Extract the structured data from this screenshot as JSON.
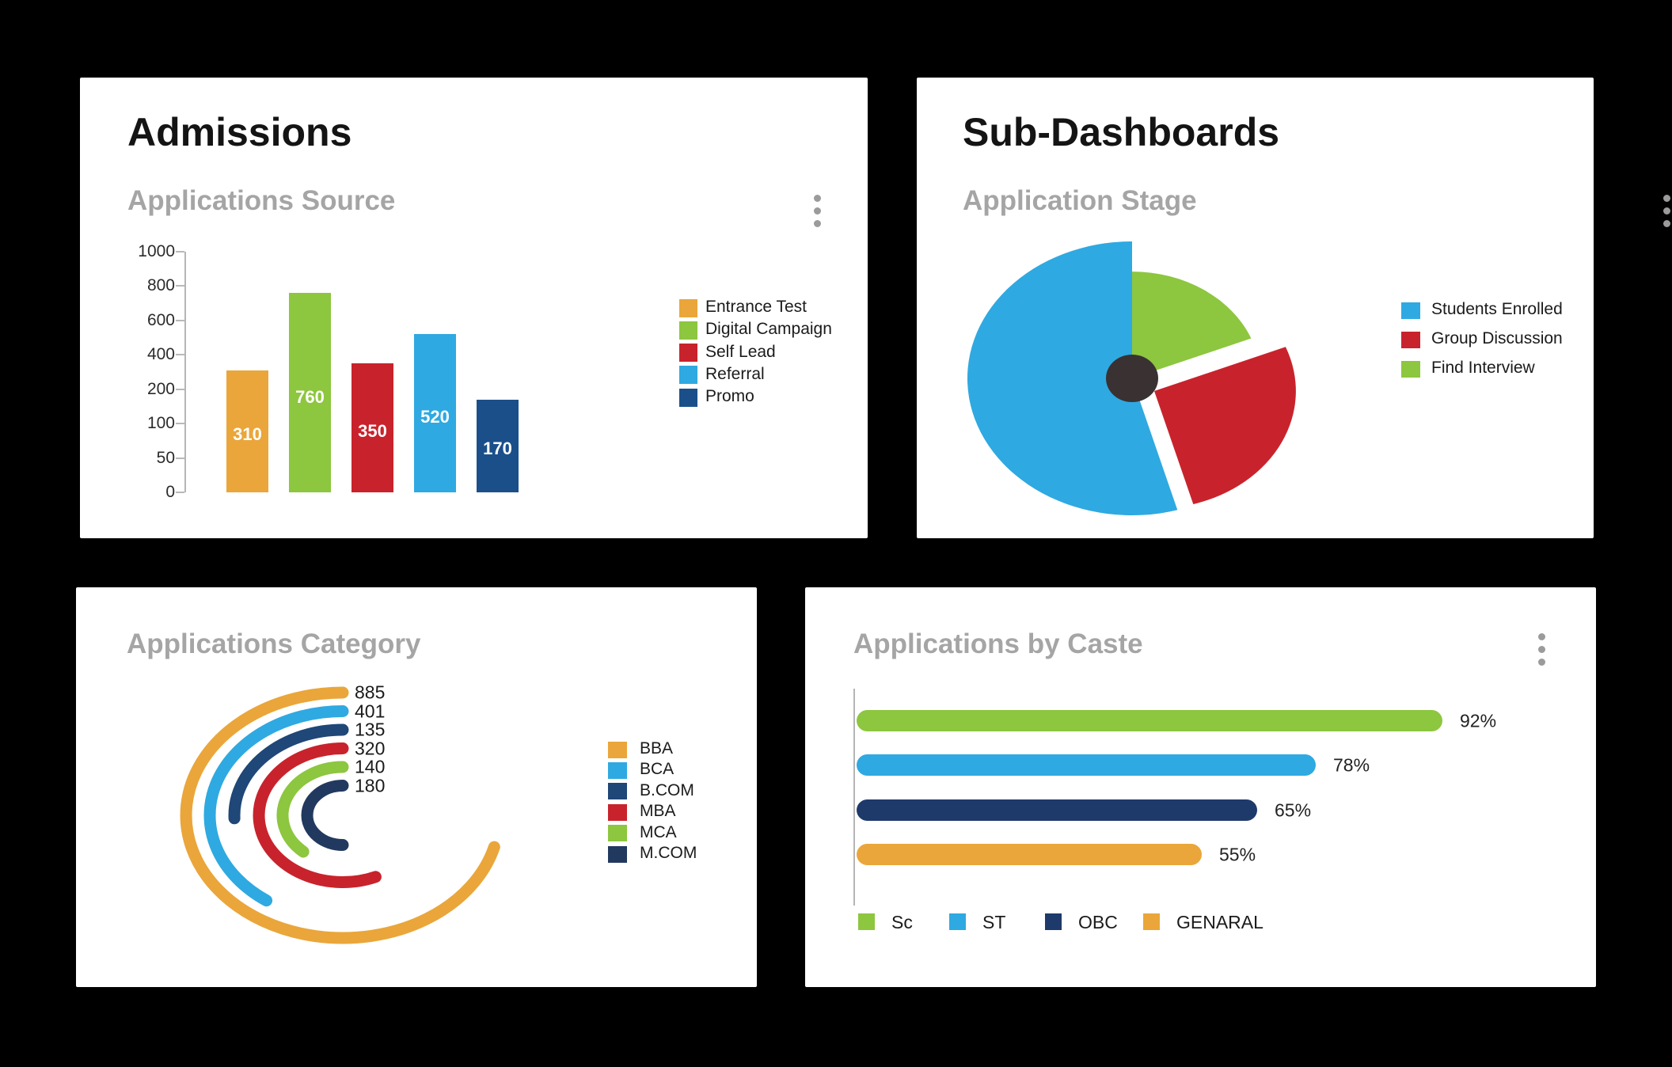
{
  "page": {
    "background": "#000000",
    "panel_background": "#ffffff"
  },
  "colors": {
    "yellow": "#EAA63A",
    "green": "#8DC63F",
    "red": "#C8232C",
    "light_blue": "#2FA9E1",
    "navy_promo": "#1B4F8A",
    "navy_bcom": "#1F4777",
    "navy_obc": "#1E3A6B",
    "navy_mcom": "#22395F",
    "pie_center": "#3A3133",
    "subtitle_gray": "#A5A5A5"
  },
  "chart_data": [
    {
      "id": "applications_source",
      "type": "bar",
      "panel_title": "Admissions",
      "title": "Applications Source",
      "categories": [
        "Entrance Test",
        "Digital Campaign",
        "Self Lead",
        "Referral",
        "Promo"
      ],
      "values": [
        310,
        760,
        350,
        520,
        170
      ],
      "value_labels": [
        "310",
        "760",
        "350",
        "520",
        "170"
      ],
      "colors": [
        "#EAA63A",
        "#8DC63F",
        "#C8232C",
        "#2FA9E1",
        "#1B4F8A"
      ],
      "y_ticks": [
        1000,
        800,
        600,
        400,
        200,
        100,
        50,
        0
      ],
      "ylim": [
        0,
        1000
      ],
      "grid": false,
      "legend_position": "right",
      "value_label_style": "inside-white"
    },
    {
      "id": "application_stage",
      "type": "pie",
      "panel_title": "Sub-Dashboards",
      "title": "Application Stage",
      "slices": [
        {
          "label": "Students Enrolled",
          "percent": 54,
          "start_deg": 164,
          "end_deg": 360,
          "radius_factor": 1.0,
          "exploded": false,
          "color": "#2FA9E1"
        },
        {
          "label": "Group Discussion",
          "percent": 27,
          "start_deg": 68,
          "end_deg": 164,
          "radius_factor": 0.86,
          "exploded": true,
          "color": "#C8232C"
        },
        {
          "label": "Find Interview",
          "percent": 19,
          "start_deg": 0,
          "end_deg": 68,
          "radius_factor": 0.78,
          "exploded": false,
          "color": "#8DC63F"
        }
      ],
      "center_dot_color": "#3A3133",
      "legend_position": "right"
    },
    {
      "id": "applications_category",
      "type": "radial-bar",
      "title": "Applications Category",
      "rings": [
        {
          "label": "BBA",
          "value": 885,
          "sweep_deg": 255,
          "color": "#EAA63A"
        },
        {
          "label": "BCA",
          "value": 401,
          "sweep_deg": 145,
          "color": "#2FA9E1"
        },
        {
          "label": "B.COM",
          "value": 135,
          "sweep_deg": 92,
          "color": "#1F4777"
        },
        {
          "label": "MBA",
          "value": 320,
          "sweep_deg": 203,
          "color": "#C8232C"
        },
        {
          "label": "MCA",
          "value": 140,
          "sweep_deg": 139,
          "color": "#8DC63F"
        },
        {
          "label": "M.COM",
          "value": 180,
          "sweep_deg": 180,
          "color": "#22395F"
        }
      ],
      "value_labels": [
        "885",
        "401",
        "135",
        "320",
        "140",
        "180"
      ],
      "legend_position": "right"
    },
    {
      "id": "applications_by_caste",
      "type": "bar-horizontal",
      "title": "Applications by Caste",
      "categories": [
        "Sc",
        "ST",
        "OBC",
        "GENARAL"
      ],
      "values_pct": [
        92,
        78,
        65,
        55
      ],
      "value_labels": [
        "92%",
        "78%",
        "65%",
        "55%"
      ],
      "colors": [
        "#8DC63F",
        "#2FA9E1",
        "#1E3A6B",
        "#EAA63A"
      ],
      "legend_position": "bottom"
    }
  ],
  "icons": {
    "menu": "kebab-menu-icon"
  }
}
